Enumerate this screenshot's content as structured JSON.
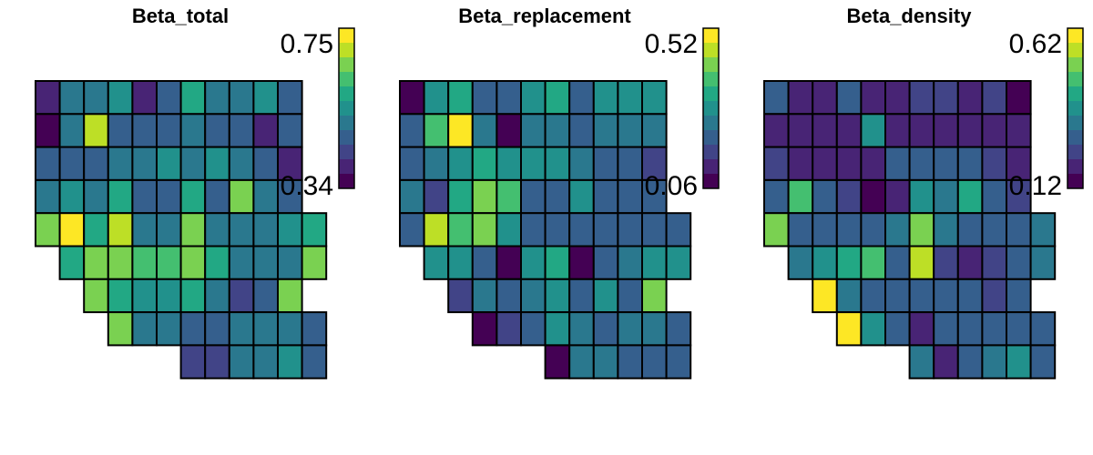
{
  "palette": [
    "#440154",
    "#482475",
    "#414487",
    "#355f8d",
    "#2a788e",
    "#21918c",
    "#22a884",
    "#44bf70",
    "#7ad151",
    "#bddf26",
    "#fde725"
  ],
  "cell_stroke": "#000000",
  "chart_data": [
    {
      "type": "heatmap",
      "title": "Beta_total",
      "legend": {
        "max_label": "0.75",
        "min_label": "0.34",
        "min": 0.34,
        "max": 0.75
      },
      "rows": [
        {
          "start": 0,
          "values": [
            0.4,
            0.52,
            0.52,
            0.55,
            0.4,
            0.45,
            0.6,
            0.5,
            0.5,
            0.55,
            0.45
          ]
        },
        {
          "start": 0,
          "values": [
            0.34,
            0.52,
            0.7,
            0.48,
            0.48,
            0.48,
            0.5,
            0.48,
            0.48,
            0.4,
            0.48
          ]
        },
        {
          "start": 0,
          "values": [
            0.45,
            0.48,
            0.48,
            0.52,
            0.52,
            0.55,
            0.5,
            0.55,
            0.52,
            0.48,
            0.38
          ]
        },
        {
          "start": 0,
          "values": [
            0.52,
            0.55,
            0.52,
            0.6,
            0.48,
            0.48,
            0.6,
            0.48,
            0.65,
            0.52,
            0.48
          ]
        },
        {
          "start": 0,
          "values": [
            0.65,
            0.75,
            0.58,
            0.7,
            0.52,
            0.5,
            0.65,
            0.52,
            0.52,
            0.52,
            0.55,
            0.6
          ]
        },
        {
          "start": 1,
          "values": [
            0.58,
            0.68,
            0.65,
            0.62,
            0.62,
            0.65,
            0.58,
            0.52,
            0.52,
            0.5,
            0.65
          ]
        },
        {
          "start": 2,
          "values": [
            0.68,
            0.58,
            0.55,
            0.55,
            0.58,
            0.52,
            0.44,
            0.48,
            0.65
          ]
        },
        {
          "start": 3,
          "values": [
            0.65,
            0.52,
            0.52,
            0.48,
            0.48,
            0.52,
            0.52,
            0.52,
            0.48
          ]
        },
        {
          "start": 6,
          "values": [
            0.44,
            0.42,
            0.52,
            0.52,
            0.55,
            0.48
          ]
        }
      ]
    },
    {
      "type": "heatmap",
      "title": "Beta_replacement",
      "legend": {
        "max_label": "0.52",
        "min_label": "0.06",
        "min": 0.06,
        "max": 0.52
      },
      "rows": [
        {
          "start": 0,
          "values": [
            0.08,
            0.3,
            0.35,
            0.22,
            0.22,
            0.28,
            0.35,
            0.22,
            0.28,
            0.28,
            0.28
          ]
        },
        {
          "start": 0,
          "values": [
            0.2,
            0.38,
            0.52,
            0.25,
            0.06,
            0.25,
            0.25,
            0.22,
            0.25,
            0.25,
            0.25
          ]
        },
        {
          "start": 0,
          "values": [
            0.22,
            0.25,
            0.3,
            0.35,
            0.3,
            0.28,
            0.3,
            0.25,
            0.22,
            0.22,
            0.14
          ]
        },
        {
          "start": 0,
          "values": [
            0.25,
            0.14,
            0.35,
            0.42,
            0.38,
            0.2,
            0.18,
            0.28,
            0.22,
            0.22,
            0.22
          ]
        },
        {
          "start": 0,
          "values": [
            0.2,
            0.46,
            0.38,
            0.42,
            0.28,
            0.22,
            0.2,
            0.2,
            0.22,
            0.2,
            0.22,
            0.22
          ]
        },
        {
          "start": 1,
          "values": [
            0.3,
            0.3,
            0.2,
            0.06,
            0.28,
            0.35,
            0.06,
            0.22,
            0.25,
            0.28,
            0.28
          ]
        },
        {
          "start": 2,
          "values": [
            0.14,
            0.25,
            0.22,
            0.25,
            0.3,
            0.2,
            0.28,
            0.18,
            0.42
          ]
        },
        {
          "start": 3,
          "values": [
            0.06,
            0.14,
            0.22,
            0.28,
            0.25,
            0.22,
            0.25,
            0.25,
            0.22
          ]
        },
        {
          "start": 6,
          "values": [
            0.06,
            0.25,
            0.25,
            0.22,
            0.2,
            0.2
          ]
        }
      ]
    },
    {
      "type": "heatmap",
      "title": "Beta_density",
      "legend": {
        "max_label": "0.62",
        "min_label": "0.12",
        "min": 0.12,
        "max": 0.62
      },
      "rows": [
        {
          "start": 0,
          "values": [
            0.28,
            0.18,
            0.18,
            0.28,
            0.18,
            0.18,
            0.22,
            0.22,
            0.18,
            0.22,
            0.12
          ]
        },
        {
          "start": 0,
          "values": [
            0.18,
            0.18,
            0.18,
            0.18,
            0.35,
            0.18,
            0.18,
            0.18,
            0.18,
            0.18,
            0.18
          ]
        },
        {
          "start": 0,
          "values": [
            0.22,
            0.18,
            0.18,
            0.18,
            0.18,
            0.28,
            0.28,
            0.28,
            0.28,
            0.22,
            0.18
          ]
        },
        {
          "start": 0,
          "values": [
            0.28,
            0.45,
            0.25,
            0.22,
            0.12,
            0.18,
            0.38,
            0.3,
            0.42,
            0.28,
            0.22
          ]
        },
        {
          "start": 0,
          "values": [
            0.52,
            0.28,
            0.28,
            0.28,
            0.28,
            0.3,
            0.52,
            0.3,
            0.28,
            0.25,
            0.28,
            0.32
          ]
        },
        {
          "start": 1,
          "values": [
            0.3,
            0.35,
            0.42,
            0.48,
            0.28,
            0.58,
            0.22,
            0.18,
            0.22,
            0.28,
            0.3
          ]
        },
        {
          "start": 2,
          "values": [
            0.62,
            0.32,
            0.28,
            0.28,
            0.28,
            0.25,
            0.25,
            0.22,
            0.28
          ]
        },
        {
          "start": 3,
          "values": [
            0.62,
            0.35,
            0.25,
            0.18,
            0.25,
            0.28,
            0.28,
            0.28,
            0.28
          ]
        },
        {
          "start": 6,
          "values": [
            0.3,
            0.18,
            0.28,
            0.3,
            0.38,
            0.28
          ]
        }
      ]
    }
  ]
}
